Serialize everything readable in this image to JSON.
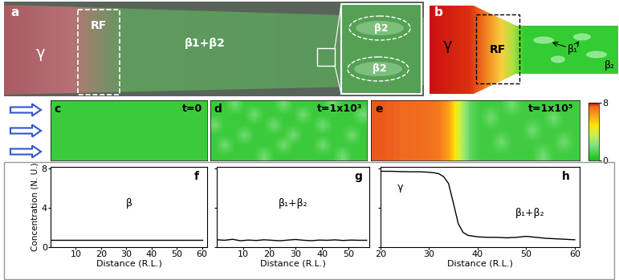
{
  "panels": {
    "a": {
      "panel": "a",
      "gamma": "γ",
      "rf": "RF",
      "phases": "β1+β2",
      "inset": [
        "β2",
        "β2"
      ]
    },
    "b": {
      "panel": "b",
      "gamma": "γ",
      "rf": "RF",
      "beta1": "β₁",
      "beta2": "β₂"
    }
  },
  "colorbar": {
    "range": [
      0,
      8
    ],
    "ticks": [
      0,
      8
    ]
  },
  "chart_data": [
    {
      "type": "heatmap",
      "panel": "c",
      "title": "t=0",
      "tick_labels": false,
      "cells": [
        [
          0.7
        ]
      ]
    },
    {
      "type": "heatmap",
      "panel": "d",
      "title": "t=1x10³",
      "tick_labels": false,
      "cells": [
        [
          0.7,
          0.7,
          1.8,
          0.7,
          0.7,
          0.7,
          0.7,
          1.8,
          0.7,
          0.7,
          0.7,
          0.7,
          1.8,
          0.7,
          0.7,
          0.7
        ],
        [
          0.7,
          0.7,
          0.7,
          0.7,
          1.8,
          0.7,
          0.7,
          0.7,
          0.7,
          1.8,
          0.7,
          0.7,
          0.7,
          0.7,
          0.7,
          1.8
        ],
        [
          1.8,
          0.7,
          0.7,
          0.7,
          0.7,
          0.7,
          1.8,
          0.7,
          0.7,
          0.7,
          0.7,
          1.8,
          0.7,
          0.7,
          0.7,
          0.7
        ],
        [
          0.7,
          0.7,
          0.7,
          1.8,
          0.7,
          0.7,
          0.7,
          0.7,
          1.8,
          0.7,
          0.7,
          0.7,
          0.7,
          0.7,
          1.8,
          0.7
        ],
        [
          0.7,
          1.8,
          0.7,
          0.7,
          0.7,
          0.7,
          0.7,
          1.8,
          0.7,
          0.7,
          0.7,
          1.8,
          0.7,
          0.7,
          0.7,
          0.7
        ],
        [
          0.7,
          0.7,
          0.7,
          0.7,
          0.7,
          1.8,
          0.7,
          0.7,
          0.7,
          0.7,
          0.7,
          0.7,
          0.7,
          1.8,
          0.7,
          0.7
        ]
      ]
    },
    {
      "type": "heatmap",
      "panel": "e",
      "title": "t=1x10⁵",
      "tick_labels": false,
      "cells": [
        [
          7.5,
          7.5,
          7.45,
          7.4,
          7.35,
          7.3,
          7.1,
          6.2,
          3.8,
          1.4,
          0.8,
          0.8,
          0.8,
          1.8,
          0.8,
          0.8,
          0.8,
          0.8,
          0.8,
          0.8
        ],
        [
          7.5,
          7.5,
          7.45,
          7.4,
          7.35,
          7.3,
          7.1,
          6.2,
          3.8,
          1.4,
          0.8,
          1.8,
          0.8,
          0.8,
          0.8,
          0.8,
          0.8,
          1.8,
          0.8,
          0.8
        ],
        [
          7.5,
          7.5,
          7.45,
          7.4,
          7.35,
          7.3,
          7.1,
          6.2,
          3.8,
          1.4,
          0.8,
          0.8,
          0.8,
          0.8,
          0.8,
          1.8,
          0.8,
          0.8,
          0.8,
          0.8
        ],
        [
          7.5,
          7.5,
          7.45,
          7.4,
          7.35,
          7.3,
          7.1,
          6.2,
          3.8,
          1.4,
          0.8,
          0.8,
          1.8,
          0.8,
          0.8,
          0.8,
          0.8,
          0.8,
          1.8,
          0.8
        ],
        [
          7.5,
          7.5,
          7.45,
          7.4,
          7.35,
          7.3,
          7.1,
          6.2,
          3.8,
          1.4,
          0.8,
          0.8,
          0.8,
          0.8,
          0.8,
          0.8,
          1.8,
          0.8,
          0.8,
          0.8
        ]
      ]
    },
    {
      "type": "line",
      "panel": "f",
      "xlabel": "Distance (R.L.)",
      "ylabel": "Concentration (N. U.)",
      "annotations": [
        "β"
      ],
      "color": "#000000",
      "line_style": "solid",
      "x": [
        0,
        10,
        20,
        30,
        40,
        50,
        60
      ],
      "values": [
        0.7,
        0.7,
        0.7,
        0.7,
        0.7,
        0.7,
        0.7
      ],
      "xlim": [
        0,
        62
      ],
      "ylim": [
        0,
        8.2
      ],
      "xticks": [
        10,
        20,
        30,
        40,
        50,
        60
      ],
      "yticks": [
        0,
        4,
        8
      ]
    },
    {
      "type": "line",
      "panel": "g",
      "xlabel": "Distance (R.L.)",
      "annotations": [
        "β₁+β₂"
      ],
      "color": "#000000",
      "line_style": "solid",
      "tick_labels": "x",
      "x": [
        0,
        3,
        6,
        9,
        12,
        15,
        18,
        21,
        24,
        27,
        30,
        33,
        36,
        39,
        42,
        45,
        48,
        51,
        54,
        57
      ],
      "values": [
        0.75,
        0.7,
        0.8,
        0.65,
        0.72,
        0.68,
        0.75,
        0.7,
        0.65,
        0.72,
        0.78,
        0.7,
        0.66,
        0.72,
        0.7,
        0.74,
        0.68,
        0.72,
        0.7,
        0.7
      ],
      "xlim": [
        0,
        58
      ],
      "ylim": [
        0,
        8.2
      ],
      "xticks": [
        10,
        20,
        30,
        40,
        50
      ],
      "yticks": [
        0,
        4,
        8
      ]
    },
    {
      "type": "line",
      "panel": "h",
      "xlabel": "Distance (R.L.)",
      "annotations": [
        "γ",
        "β₁+β₂"
      ],
      "color": "#000000",
      "line_style": "solid",
      "tick_labels": "x",
      "x": [
        20,
        22,
        24,
        26,
        28,
        30,
        31,
        32,
        33,
        34,
        35,
        36,
        37,
        38,
        40,
        42,
        44,
        46,
        48,
        50,
        52,
        54,
        56,
        58,
        60
      ],
      "values": [
        7.75,
        7.75,
        7.72,
        7.7,
        7.7,
        7.65,
        7.6,
        7.5,
        7.2,
        6.5,
        4.5,
        2.4,
        1.5,
        1.2,
        1.05,
        1.0,
        1.0,
        0.95,
        1.0,
        1.1,
        1.0,
        0.9,
        0.85,
        0.8,
        0.75
      ],
      "xlim": [
        20,
        61
      ],
      "ylim": [
        0,
        8.2
      ],
      "xticks": [
        20,
        30,
        40,
        50,
        60
      ],
      "yticks": [
        0,
        4,
        8
      ]
    }
  ]
}
